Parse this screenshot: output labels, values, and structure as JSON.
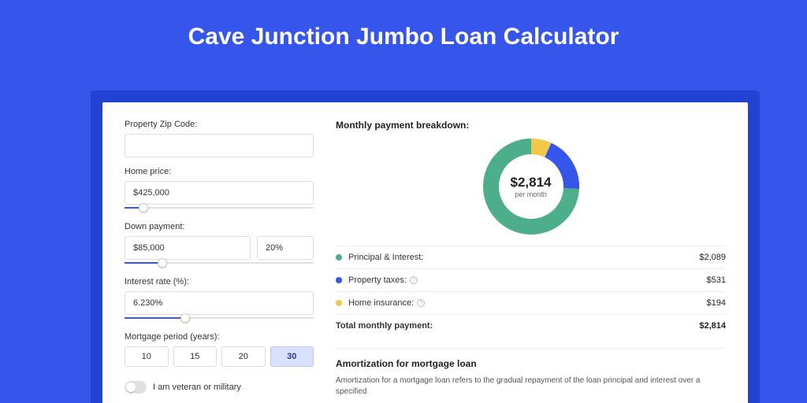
{
  "page": {
    "title": "Cave Junction Jumbo Loan Calculator",
    "background_color": "#3555eb",
    "accent_color": "#3555eb"
  },
  "form": {
    "zip": {
      "label": "Property Zip Code:",
      "value": ""
    },
    "home_price": {
      "label": "Home price:",
      "value": "$425,000",
      "slider_pct": 10
    },
    "down_payment": {
      "label": "Down payment:",
      "amount": "$85,000",
      "percent": "20%",
      "slider_pct": 20
    },
    "interest_rate": {
      "label": "Interest rate (%):",
      "value": "6.230%",
      "slider_pct": 32
    },
    "period": {
      "label": "Mortgage period (years):",
      "options": [
        "10",
        "15",
        "20",
        "30"
      ],
      "selected": "30"
    },
    "veteran": {
      "label": "I am veteran or military",
      "checked": false
    }
  },
  "breakdown": {
    "title": "Monthly payment breakdown:",
    "center_value": "$2,814",
    "center_label": "per month",
    "items": [
      {
        "label": "Principal & Interest:",
        "value": "$2,089",
        "share": 74.2,
        "color": "#4cae8a",
        "info": false
      },
      {
        "label": "Property taxes:",
        "value": "$531",
        "share": 18.9,
        "color": "#3555eb",
        "info": true
      },
      {
        "label": "Home insurance:",
        "value": "$194",
        "share": 6.9,
        "color": "#f2c84b",
        "info": true
      }
    ],
    "total": {
      "label": "Total monthly payment:",
      "value": "$2,814"
    },
    "donut": {
      "size": 122,
      "thickness": 20,
      "background": "#ffffff"
    }
  },
  "amortization": {
    "title": "Amortization for mortgage loan",
    "text": "Amortization for a mortgage loan refers to the gradual repayment of the loan principal and interest over a specified"
  }
}
